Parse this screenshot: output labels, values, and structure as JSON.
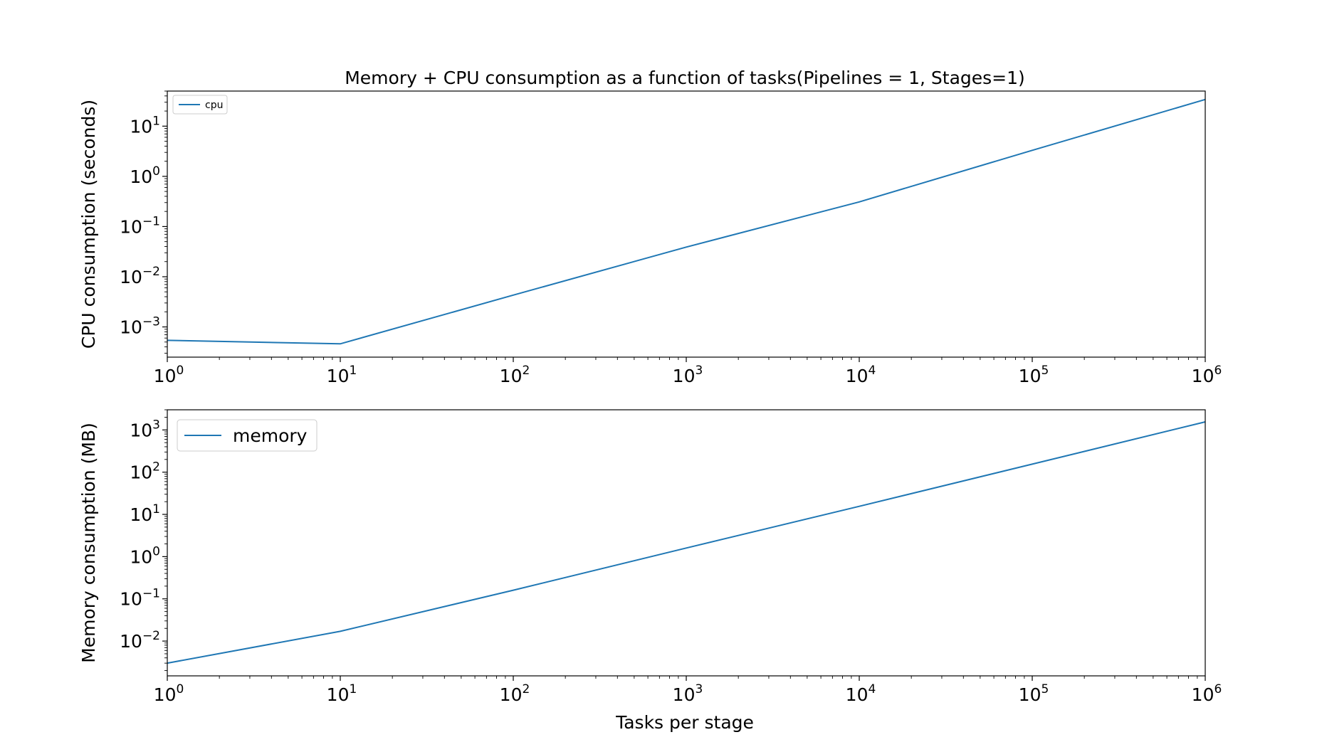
{
  "figure": {
    "title": "Memory + CPU consumption as a function of tasks(Pipelines = 1, Stages=1)",
    "xlabel": "Tasks per stage"
  },
  "colors": {
    "series": "#1f77b4",
    "axis": "#000000",
    "legend_border": "#cccccc"
  },
  "chart_data": [
    {
      "type": "line",
      "title": "Memory + CPU consumption as a function of tasks(Pipelines = 1, Stages=1)",
      "xlabel": "",
      "ylabel": "CPU consumption (seconds)",
      "xscale": "log",
      "yscale": "log",
      "xlim": [
        1,
        1000000
      ],
      "ylim": [
        0.00025,
        50
      ],
      "xticks": [
        {
          "base": "10",
          "exp": "0"
        },
        {
          "base": "10",
          "exp": "1"
        },
        {
          "base": "10",
          "exp": "2"
        },
        {
          "base": "10",
          "exp": "3"
        },
        {
          "base": "10",
          "exp": "4"
        },
        {
          "base": "10",
          "exp": "5"
        },
        {
          "base": "10",
          "exp": "6"
        }
      ],
      "yticks": [
        {
          "base": "10",
          "exp": "−3"
        },
        {
          "base": "10",
          "exp": "−2"
        },
        {
          "base": "10",
          "exp": "−1"
        },
        {
          "base": "10",
          "exp": "0"
        },
        {
          "base": "10",
          "exp": "1"
        }
      ],
      "grid": false,
      "legend": "top-left",
      "series": [
        {
          "name": "cpu",
          "x": [
            1,
            10,
            100,
            1000,
            10000,
            100000,
            1000000
          ],
          "y": [
            0.00054,
            0.00046,
            0.0043,
            0.039,
            0.31,
            3.3,
            34
          ]
        }
      ]
    },
    {
      "type": "line",
      "xlabel": "Tasks per stage",
      "ylabel": "Memory consumption (MB)",
      "xscale": "log",
      "yscale": "log",
      "xlim": [
        1,
        1000000
      ],
      "ylim": [
        0.0015,
        3000
      ],
      "xticks": [
        {
          "base": "10",
          "exp": "0"
        },
        {
          "base": "10",
          "exp": "1"
        },
        {
          "base": "10",
          "exp": "2"
        },
        {
          "base": "10",
          "exp": "3"
        },
        {
          "base": "10",
          "exp": "4"
        },
        {
          "base": "10",
          "exp": "5"
        },
        {
          "base": "10",
          "exp": "6"
        }
      ],
      "yticks": [
        {
          "base": "10",
          "exp": "−2"
        },
        {
          "base": "10",
          "exp": "−1"
        },
        {
          "base": "10",
          "exp": "0"
        },
        {
          "base": "10",
          "exp": "1"
        },
        {
          "base": "10",
          "exp": "2"
        },
        {
          "base": "10",
          "exp": "3"
        }
      ],
      "grid": false,
      "legend": "top-left",
      "series": [
        {
          "name": "memory",
          "x": [
            1,
            10,
            100,
            1000,
            10000,
            100000,
            1000000
          ],
          "y": [
            0.003,
            0.017,
            0.16,
            1.6,
            15.5,
            155,
            1550
          ]
        }
      ]
    }
  ]
}
